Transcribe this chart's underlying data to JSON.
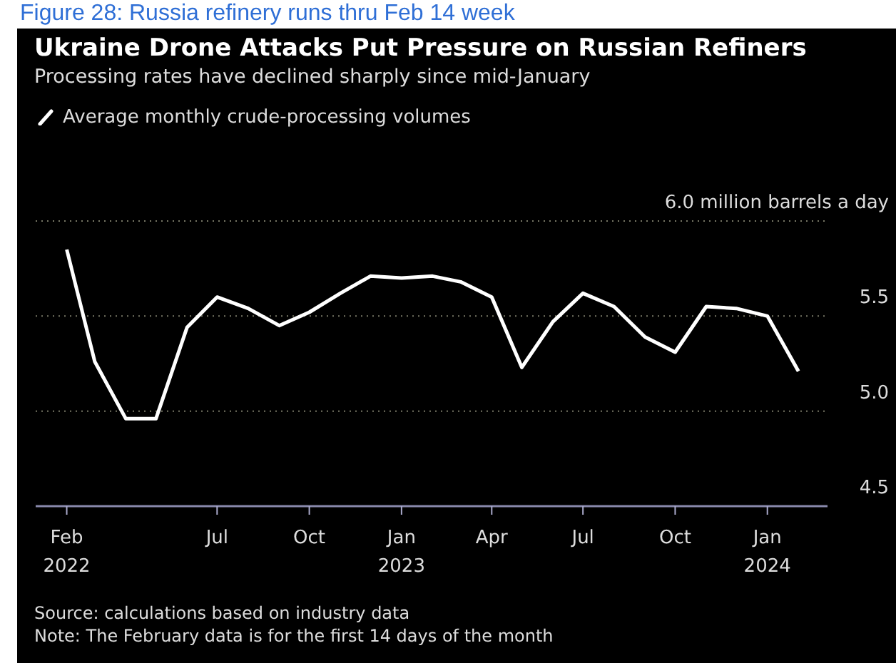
{
  "chart_data": {
    "type": "line",
    "title": "Ukraine Drone Attacks Put Pressure on Russian Refiners",
    "subtitle": "Processing rates have declined sharply since mid-January",
    "x": [
      "2022-02",
      "2022-03",
      "2022-04",
      "2022-05",
      "2022-06",
      "2022-07",
      "2022-08",
      "2022-09",
      "2022-10",
      "2022-11",
      "2022-12",
      "2023-01",
      "2023-02",
      "2023-03",
      "2023-04",
      "2023-05",
      "2023-06",
      "2023-07",
      "2023-08",
      "2023-09",
      "2023-10",
      "2023-11",
      "2023-12",
      "2024-01",
      "2024-02"
    ],
    "series": [
      {
        "name": "Average monthly crude-processing volumes",
        "color": "#ffffff",
        "values": [
          5.85,
          5.26,
          4.96,
          4.96,
          5.44,
          5.6,
          5.54,
          5.45,
          5.52,
          5.62,
          5.71,
          5.7,
          5.71,
          5.68,
          5.6,
          5.23,
          5.47,
          5.62,
          5.55,
          5.39,
          5.31,
          5.55,
          5.54,
          5.5,
          5.21
        ]
      }
    ],
    "xlim": [
      "2022-01",
      "2024-03"
    ],
    "xticks": [
      {
        "value": "2022-02",
        "label": "Feb\n2022"
      },
      {
        "value": "2022-07",
        "label": "Jul"
      },
      {
        "value": "2022-10",
        "label": "Oct"
      },
      {
        "value": "2023-01",
        "label": "Jan\n2023"
      },
      {
        "value": "2023-04",
        "label": "Apr"
      },
      {
        "value": "2023-07",
        "label": "Jul"
      },
      {
        "value": "2023-10",
        "label": "Oct"
      },
      {
        "value": "2024-01",
        "label": "Jan\n2024"
      }
    ],
    "ylim": [
      4.5,
      6.0
    ],
    "yticks": [
      4.5,
      {
        "value": 5.0,
        "label": "5.0"
      },
      5.5,
      {
        "value": 6.0,
        "label": "6.0 million barrels a day"
      }
    ],
    "grid": "y",
    "legend": "top left",
    "marker": "none",
    "line_style": "solid",
    "annotations": [
      "Figure 28: Russia refinery runs thru Feb 14 week",
      "Source: calculations based on industry data",
      "Note: The February data is for the first 14 days of the month"
    ]
  }
}
